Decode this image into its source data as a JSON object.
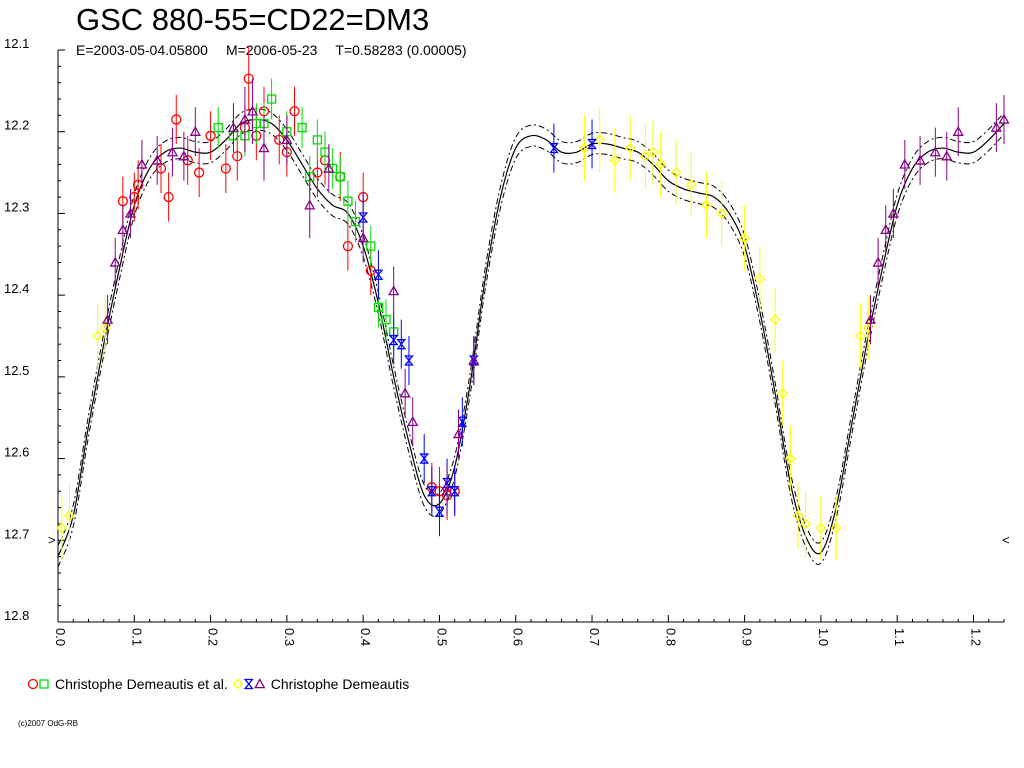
{
  "chart_data": {
    "type": "scatter",
    "title": "GSC 880-55=CD22=DM3",
    "subtitle": {
      "epoch": "E=2003-05-04.05800",
      "mean_date": "M=2006-05-23",
      "period": "T=0.58283 (0.00005)"
    },
    "xlabel": "",
    "ylabel": "",
    "xlim": [
      0.0,
      1.24
    ],
    "ylim": [
      12.1,
      12.8
    ],
    "y_inverted": true,
    "grid": false,
    "x_ticks": [
      "0.0",
      "0.1",
      "0.2",
      "0.3",
      "0.4",
      "0.5",
      "0.6",
      "0.7",
      "0.8",
      "0.9",
      "1.0",
      "1.1",
      "1.2"
    ],
    "y_ticks": [
      "12.1",
      "12.2",
      "12.3",
      "12.4",
      "12.5",
      "12.6",
      "12.7",
      "12.8"
    ],
    "edge_markers": {
      "left": ">",
      "right": "<"
    },
    "legend": {
      "placement": "bottom-left",
      "entries": [
        {
          "label": "Christophe Demeautis et al.",
          "markers": [
            {
              "shape": "circle",
              "color": "#ff0000"
            },
            {
              "shape": "square",
              "color": "#00dd00"
            }
          ]
        },
        {
          "label": "Christophe Demeautis",
          "markers": [
            {
              "shape": "diamond",
              "color": "#ffff00"
            },
            {
              "shape": "hourglass",
              "color": "#0000ff"
            },
            {
              "shape": "triangle",
              "color": "#880088"
            }
          ]
        }
      ]
    },
    "model_curve": {
      "x": [
        0.0,
        0.02,
        0.04,
        0.06,
        0.08,
        0.1,
        0.12,
        0.14,
        0.16,
        0.18,
        0.2,
        0.22,
        0.24,
        0.26,
        0.28,
        0.3,
        0.32,
        0.34,
        0.36,
        0.38,
        0.4,
        0.42,
        0.44,
        0.46,
        0.48,
        0.5,
        0.52,
        0.54,
        0.56,
        0.58,
        0.6,
        0.62,
        0.64,
        0.66,
        0.68,
        0.7,
        0.72,
        0.74,
        0.76,
        0.78,
        0.8,
        0.82,
        0.84,
        0.86,
        0.88,
        0.9,
        0.92,
        0.94,
        0.96,
        0.98,
        1.0,
        1.02,
        1.04,
        1.06,
        1.08,
        1.1,
        1.12,
        1.14,
        1.16,
        1.18,
        1.2,
        1.22,
        1.24
      ],
      "y": [
        12.72,
        12.67,
        12.56,
        12.46,
        12.37,
        12.29,
        12.245,
        12.225,
        12.22,
        12.225,
        12.225,
        12.21,
        12.19,
        12.185,
        12.19,
        12.21,
        12.24,
        12.27,
        12.29,
        12.3,
        12.34,
        12.41,
        12.5,
        12.58,
        12.645,
        12.655,
        12.61,
        12.51,
        12.38,
        12.28,
        12.22,
        12.205,
        12.21,
        12.225,
        12.225,
        12.215,
        12.215,
        12.22,
        12.225,
        12.24,
        12.26,
        12.27,
        12.275,
        12.28,
        12.3,
        12.34,
        12.42,
        12.52,
        12.63,
        12.695,
        12.715,
        12.66,
        12.56,
        12.46,
        12.37,
        12.29,
        12.245,
        12.225,
        12.22,
        12.225,
        12.225,
        12.21,
        12.19
      ],
      "band": 0.013
    },
    "series": [
      {
        "name": "Christophe Demeautis et al.",
        "marker": "circle",
        "color": "#ff0000",
        "x": [
          0.085,
          0.1,
          0.105,
          0.135,
          0.145,
          0.155,
          0.17,
          0.185,
          0.2,
          0.22,
          0.235,
          0.245,
          0.25,
          0.26,
          0.27,
          0.29,
          0.3,
          0.31,
          0.34,
          0.35,
          0.37,
          0.38,
          0.4,
          0.41,
          0.49,
          0.5,
          0.51,
          0.52
        ],
        "y": [
          12.285,
          12.28,
          12.265,
          12.245,
          12.28,
          12.185,
          12.235,
          12.25,
          12.205,
          12.245,
          12.23,
          12.195,
          12.135,
          12.205,
          12.175,
          12.21,
          12.225,
          12.175,
          12.25,
          12.235,
          12.255,
          12.34,
          12.28,
          12.37,
          12.635,
          12.64,
          12.645,
          12.64
        ],
        "err": [
          0.03,
          0.03,
          0.03,
          0.03,
          0.03,
          0.03,
          0.03,
          0.03,
          0.03,
          0.03,
          0.03,
          0.03,
          0.04,
          0.03,
          0.03,
          0.03,
          0.03,
          0.03,
          0.03,
          0.03,
          0.03,
          0.03,
          0.03,
          0.03,
          0.03,
          0.03,
          0.03,
          0.03
        ]
      },
      {
        "name": "Christophe Demeautis et al.",
        "marker": "square",
        "color": "#00dd00",
        "x": [
          0.21,
          0.23,
          0.245,
          0.26,
          0.27,
          0.28,
          0.3,
          0.32,
          0.33,
          0.34,
          0.35,
          0.36,
          0.37,
          0.38,
          0.39,
          0.41,
          0.42,
          0.43,
          0.44
        ],
        "y": [
          12.195,
          12.205,
          12.205,
          12.19,
          12.19,
          12.16,
          12.2,
          12.195,
          12.255,
          12.21,
          12.225,
          12.245,
          12.255,
          12.285,
          12.31,
          12.34,
          12.415,
          12.43,
          12.445
        ],
        "err": [
          0.025,
          0.025,
          0.025,
          0.025,
          0.025,
          0.025,
          0.025,
          0.025,
          0.025,
          0.025,
          0.025,
          0.025,
          0.025,
          0.025,
          0.025,
          0.025,
          0.025,
          0.025,
          0.025
        ]
      },
      {
        "name": "Christophe Demeautis",
        "marker": "diamond",
        "color": "#ffff00",
        "x": [
          0.005,
          0.015,
          0.052,
          0.062,
          0.69,
          0.71,
          0.73,
          0.75,
          0.77,
          0.78,
          0.79,
          0.81,
          0.83,
          0.85,
          0.87,
          0.9,
          0.92,
          0.94,
          0.95,
          0.96,
          0.97,
          0.98,
          1.0,
          1.02,
          1.052,
          1.062
        ],
        "y": [
          12.685,
          12.67,
          12.45,
          12.44,
          12.22,
          12.21,
          12.235,
          12.22,
          12.23,
          12.225,
          12.24,
          12.25,
          12.265,
          12.29,
          12.3,
          12.33,
          12.38,
          12.43,
          12.52,
          12.6,
          12.67,
          12.68,
          12.685,
          12.685,
          12.45,
          12.44
        ],
        "err": [
          0.04,
          0.04,
          0.04,
          0.04,
          0.04,
          0.04,
          0.04,
          0.04,
          0.04,
          0.04,
          0.04,
          0.04,
          0.04,
          0.04,
          0.04,
          0.04,
          0.04,
          0.04,
          0.04,
          0.04,
          0.04,
          0.04,
          0.04,
          0.04,
          0.04,
          0.04
        ]
      },
      {
        "name": "Christophe Demeautis",
        "marker": "hourglass",
        "color": "#0000ff",
        "x": [
          0.4,
          0.42,
          0.44,
          0.45,
          0.46,
          0.48,
          0.49,
          0.5,
          0.51,
          0.52,
          0.53,
          0.545,
          0.65,
          0.7
        ],
        "y": [
          12.305,
          12.375,
          12.455,
          12.46,
          12.48,
          12.6,
          12.64,
          12.665,
          12.63,
          12.64,
          12.555,
          12.48,
          12.22,
          12.215
        ],
        "err": [
          0.03,
          0.03,
          0.03,
          0.03,
          0.03,
          0.03,
          0.03,
          0.03,
          0.03,
          0.03,
          0.03,
          0.03,
          0.03,
          0.03
        ]
      },
      {
        "name": "Christophe Demeautis",
        "marker": "triangle",
        "color": "#880088",
        "x": [
          0.065,
          0.075,
          0.085,
          0.095,
          0.11,
          0.13,
          0.15,
          0.165,
          0.18,
          0.23,
          0.245,
          0.255,
          0.27,
          0.3,
          0.33,
          0.355,
          0.4,
          0.44,
          0.455,
          0.465,
          0.51,
          0.525,
          0.545,
          1.065,
          1.075,
          1.085,
          1.095,
          1.11,
          1.13,
          1.15,
          1.165,
          1.18,
          1.23,
          1.24
        ],
        "y": [
          12.43,
          12.36,
          12.32,
          12.3,
          12.24,
          12.235,
          12.225,
          12.23,
          12.2,
          12.195,
          12.185,
          12.175,
          12.22,
          12.21,
          12.29,
          12.245,
          12.33,
          12.395,
          12.52,
          12.555,
          12.64,
          12.57,
          12.48,
          12.43,
          12.36,
          12.32,
          12.3,
          12.24,
          12.235,
          12.225,
          12.23,
          12.2,
          12.195,
          12.185
        ],
        "err": [
          0.03,
          0.03,
          0.03,
          0.03,
          0.03,
          0.03,
          0.03,
          0.03,
          0.03,
          0.03,
          0.04,
          0.04,
          0.04,
          0.03,
          0.04,
          0.03,
          0.03,
          0.03,
          0.03,
          0.03,
          0.03,
          0.03,
          0.03,
          0.03,
          0.03,
          0.03,
          0.03,
          0.03,
          0.03,
          0.03,
          0.03,
          0.03,
          0.03,
          0.03
        ]
      }
    ]
  },
  "footer": {
    "credit": "(c)2007 OdG-RB"
  }
}
